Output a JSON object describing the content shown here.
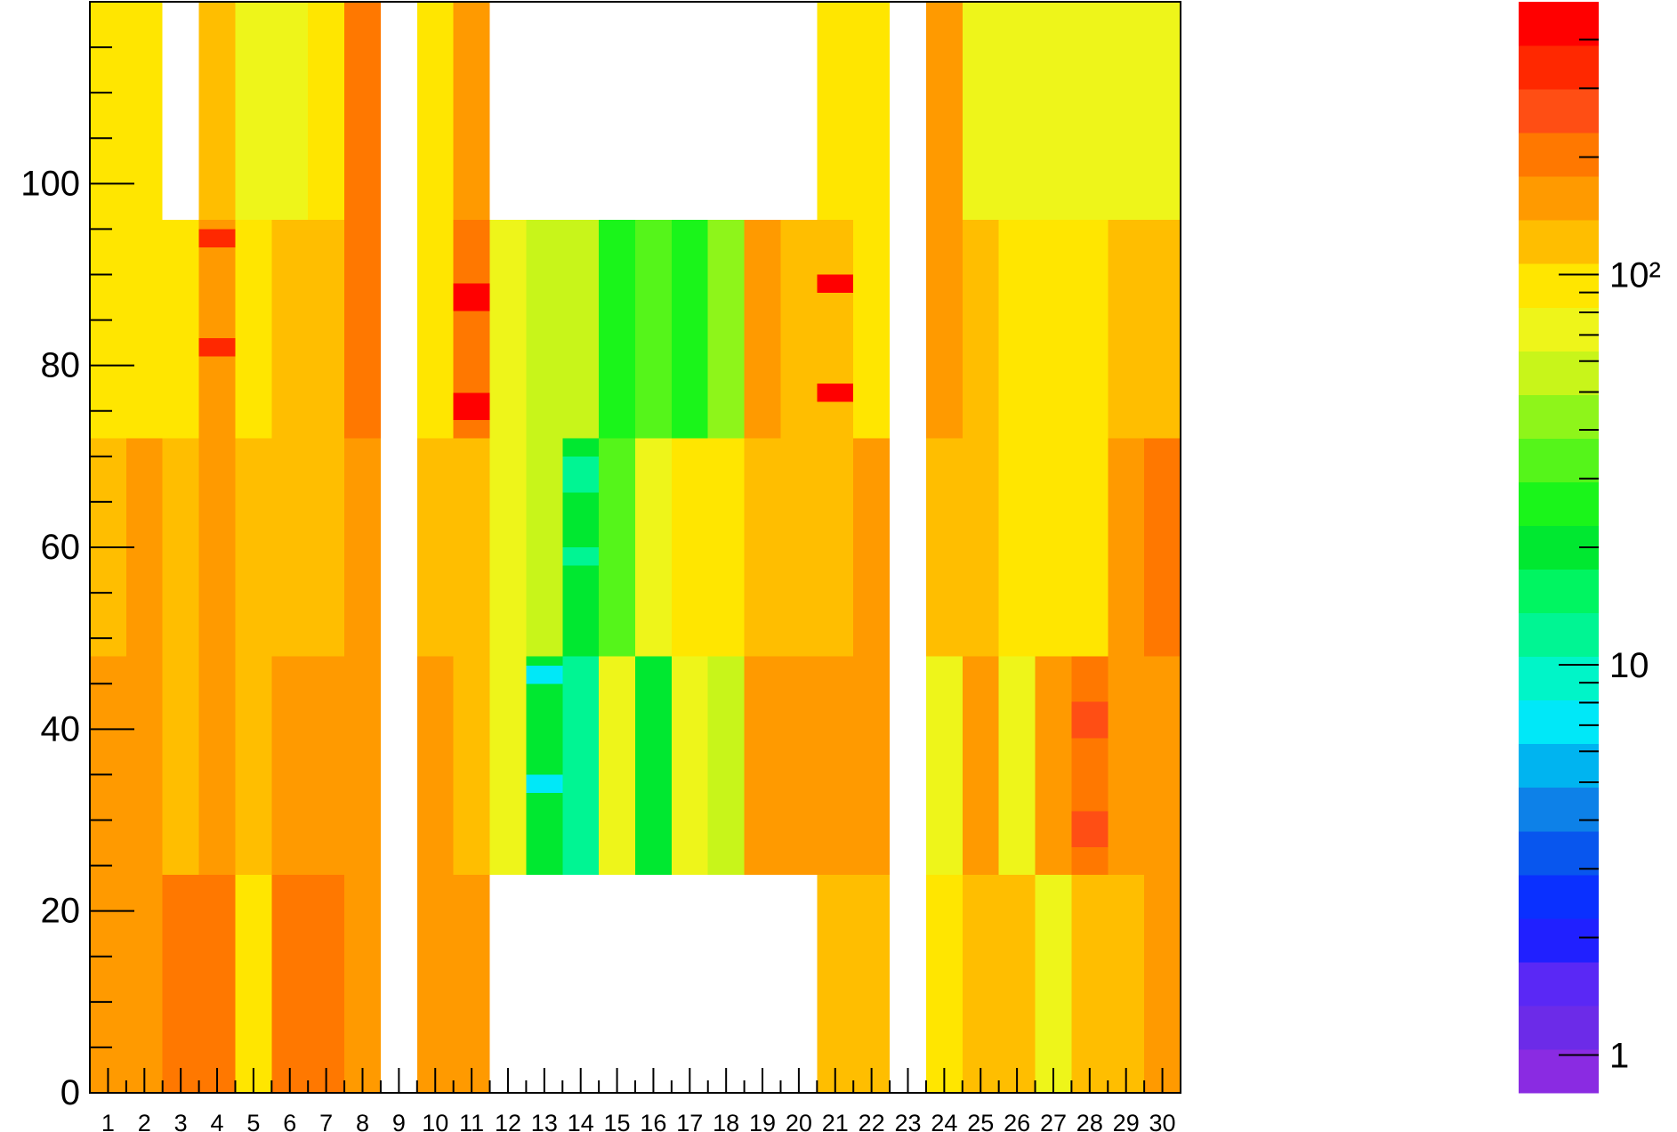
{
  "chart_data": {
    "type": "heatmap",
    "title": "",
    "xlabel": "",
    "ylabel": "",
    "x_tick_labels": [
      "1",
      "2",
      "3",
      "4",
      "5",
      "6",
      "7",
      "8",
      "9",
      "10",
      "11",
      "12",
      "13",
      "14",
      "15",
      "16",
      "17",
      "18",
      "19",
      "20",
      "21",
      "22",
      "23",
      "24",
      "25",
      "26",
      "27",
      "28",
      "29",
      "30"
    ],
    "y_tick_labels": [
      "0",
      "20",
      "40",
      "60",
      "80",
      "100"
    ],
    "y_tick_values": [
      0,
      20,
      40,
      60,
      80,
      100
    ],
    "xlim": [
      0.5,
      30.5
    ],
    "ylim": [
      0,
      120
    ],
    "color_scale": "log",
    "z_range": [
      0.8,
      500
    ],
    "colorbar_tick_labels": [
      "1",
      "10",
      "10²"
    ],
    "colorbar_tick_values": [
      1,
      10,
      100
    ],
    "palette": [
      "#8A2BE2",
      "#6C2BE8",
      "#5A28F5",
      "#2020FF",
      "#0A30FF",
      "#0856EE",
      "#0D81E8",
      "#00B4F0",
      "#00E8F8",
      "#00F5C8",
      "#00F593",
      "#00F561",
      "#00E830",
      "#1AF51A",
      "#55F51A",
      "#8EF51A",
      "#C8F51A",
      "#EEF51A",
      "#FFE600",
      "#FFBE00",
      "#FF9A00",
      "#FF7800",
      "#FF4E14",
      "#FF2800",
      "#FF0000"
    ],
    "row_bands": [
      {
        "y": [
          0,
          24
        ],
        "columns": [
          {
            "x": 1,
            "value": 140
          },
          {
            "x": 2,
            "value": 140
          },
          {
            "x": 3,
            "value": 230
          },
          {
            "x": 4,
            "value": 210
          },
          {
            "x": 5,
            "value": 95
          },
          {
            "x": 6,
            "value": 180
          },
          {
            "x": 7,
            "value": 190
          },
          {
            "x": 8,
            "value": 160
          },
          {
            "x": 10,
            "value": 170
          },
          {
            "x": 11,
            "value": 150
          },
          {
            "x": 21,
            "value": 120
          },
          {
            "x": 22,
            "value": 130
          },
          {
            "x": 24,
            "value": 90
          },
          {
            "x": 25,
            "value": 110
          },
          {
            "x": 26,
            "value": 125
          },
          {
            "x": 27,
            "value": 80
          },
          {
            "x": 28,
            "value": 110
          },
          {
            "x": 29,
            "value": 115
          },
          {
            "x": 30,
            "value": 170
          }
        ]
      },
      {
        "y": [
          24,
          48
        ],
        "columns": [
          {
            "x": 1,
            "value": 150
          },
          {
            "x": 2,
            "value": 150
          },
          {
            "x": 3,
            "value": 115
          },
          {
            "x": 4,
            "value": 145
          },
          {
            "x": 5,
            "value": 115
          },
          {
            "x": 6,
            "value": 140
          },
          {
            "x": 7,
            "value": 140
          },
          {
            "x": 8,
            "value": 145
          },
          {
            "x": 10,
            "value": 155
          },
          {
            "x": 11,
            "value": 115
          },
          {
            "x": 12,
            "value": 75
          },
          {
            "x": 13,
            "value": 22
          },
          {
            "x": 14,
            "value": 11
          },
          {
            "x": 15,
            "value": 80
          },
          {
            "x": 16,
            "value": 18
          },
          {
            "x": 17,
            "value": 70
          },
          {
            "x": 18,
            "value": 55
          },
          {
            "x": 19,
            "value": 140
          },
          {
            "x": 20,
            "value": 140
          },
          {
            "x": 21,
            "value": 145
          },
          {
            "x": 22,
            "value": 150
          },
          {
            "x": 24,
            "value": 65
          },
          {
            "x": 25,
            "value": 150
          },
          {
            "x": 26,
            "value": 80
          },
          {
            "x": 27,
            "value": 150
          },
          {
            "x": 28,
            "value": 200
          },
          {
            "x": 29,
            "value": 150
          },
          {
            "x": 30,
            "value": 150
          }
        ]
      },
      {
        "y": [
          48,
          72
        ],
        "columns": [
          {
            "x": 1,
            "value": 130
          },
          {
            "x": 2,
            "value": 140
          },
          {
            "x": 3,
            "value": 120
          },
          {
            "x": 4,
            "value": 150
          },
          {
            "x": 5,
            "value": 110
          },
          {
            "x": 6,
            "value": 135
          },
          {
            "x": 7,
            "value": 120
          },
          {
            "x": 8,
            "value": 160
          },
          {
            "x": 10,
            "value": 130
          },
          {
            "x": 11,
            "value": 130
          },
          {
            "x": 12,
            "value": 70
          },
          {
            "x": 13,
            "value": 60
          },
          {
            "x": 14,
            "value": 22
          },
          {
            "x": 15,
            "value": 30
          },
          {
            "x": 16,
            "value": 65
          },
          {
            "x": 17,
            "value": 95
          },
          {
            "x": 18,
            "value": 85
          },
          {
            "x": 19,
            "value": 130
          },
          {
            "x": 20,
            "value": 120
          },
          {
            "x": 21,
            "value": 110
          },
          {
            "x": 22,
            "value": 140
          },
          {
            "x": 24,
            "value": 115
          },
          {
            "x": 25,
            "value": 115
          },
          {
            "x": 26,
            "value": 105
          },
          {
            "x": 27,
            "value": 100
          },
          {
            "x": 28,
            "value": 85
          },
          {
            "x": 29,
            "value": 150
          },
          {
            "x": 30,
            "value": 200
          }
        ]
      },
      {
        "y": [
          72,
          96
        ],
        "columns": [
          {
            "x": 1,
            "value": 90
          },
          {
            "x": 2,
            "value": 95
          },
          {
            "x": 3,
            "value": 100
          },
          {
            "x": 4,
            "value": 170
          },
          {
            "x": 5,
            "value": 85
          },
          {
            "x": 6,
            "value": 120
          },
          {
            "x": 7,
            "value": 115
          },
          {
            "x": 8,
            "value": 220
          },
          {
            "x": 10,
            "value": 100
          },
          {
            "x": 11,
            "value": 180
          },
          {
            "x": 12,
            "value": 70
          },
          {
            "x": 13,
            "value": 55
          },
          {
            "x": 14,
            "value": 55
          },
          {
            "x": 15,
            "value": 28
          },
          {
            "x": 16,
            "value": 35
          },
          {
            "x": 17,
            "value": 25
          },
          {
            "x": 18,
            "value": 40
          },
          {
            "x": 19,
            "value": 140
          },
          {
            "x": 20,
            "value": 110
          },
          {
            "x": 21,
            "value": 120
          },
          {
            "x": 22,
            "value": 90
          },
          {
            "x": 24,
            "value": 140
          },
          {
            "x": 25,
            "value": 110
          },
          {
            "x": 26,
            "value": 85
          },
          {
            "x": 27,
            "value": 95
          },
          {
            "x": 28,
            "value": 90
          },
          {
            "x": 29,
            "value": 110
          },
          {
            "x": 30,
            "value": 120
          }
        ]
      },
      {
        "y": [
          96,
          120
        ],
        "columns": [
          {
            "x": 1,
            "value": 85
          },
          {
            "x": 2,
            "value": 85
          },
          {
            "x": 4,
            "value": 110
          },
          {
            "x": 5,
            "value": 70
          },
          {
            "x": 6,
            "value": 80
          },
          {
            "x": 7,
            "value": 90
          },
          {
            "x": 8,
            "value": 220
          },
          {
            "x": 10,
            "value": 85
          },
          {
            "x": 11,
            "value": 160
          },
          {
            "x": 21,
            "value": 100
          },
          {
            "x": 22,
            "value": 85
          },
          {
            "x": 24,
            "value": 160
          },
          {
            "x": 25,
            "value": 80
          },
          {
            "x": 26,
            "value": 75
          },
          {
            "x": 27,
            "value": 75
          },
          {
            "x": 28,
            "value": 70
          },
          {
            "x": 29,
            "value": 70
          },
          {
            "x": 30,
            "value": 70
          }
        ]
      }
    ],
    "highlights": [
      {
        "x": 11,
        "y": [
          86,
          89
        ],
        "value": 400
      },
      {
        "x": 11,
        "y": [
          74,
          77
        ],
        "value": 400
      },
      {
        "x": 21,
        "y": [
          88,
          90
        ],
        "value": 400
      },
      {
        "x": 21,
        "y": [
          76,
          78
        ],
        "value": 400
      },
      {
        "x": 4,
        "y": [
          93,
          95
        ],
        "value": 380
      },
      {
        "x": 4,
        "y": [
          81,
          83
        ],
        "value": 380
      },
      {
        "x": 28,
        "y": [
          39,
          43
        ],
        "value": 260
      },
      {
        "x": 28,
        "y": [
          27,
          31
        ],
        "value": 260
      },
      {
        "x": 14,
        "y": [
          66,
          70
        ],
        "value": 11
      },
      {
        "x": 14,
        "y": [
          58,
          60
        ],
        "value": 11
      },
      {
        "x": 13,
        "y": [
          45,
          47
        ],
        "value": 8
      },
      {
        "x": 13,
        "y": [
          33,
          35
        ],
        "value": 8
      }
    ]
  }
}
